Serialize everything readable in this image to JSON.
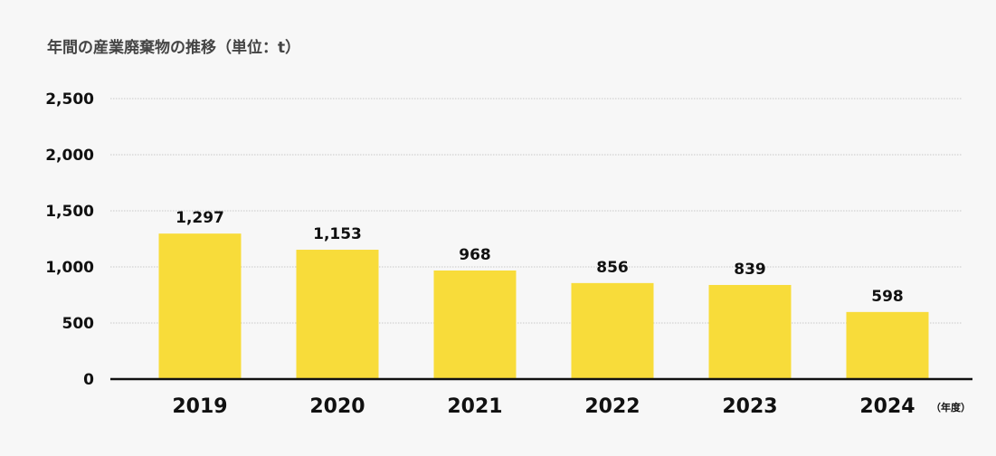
{
  "chart_data": {
    "type": "bar",
    "title": "年間の産業廃棄物の推移（単位：t）",
    "xlabel": "（年度）",
    "ylabel": "",
    "categories": [
      "2019",
      "2020",
      "2021",
      "2022",
      "2023",
      "2024"
    ],
    "values": [
      1297,
      1153,
      968,
      856,
      839,
      598
    ],
    "value_labels": [
      "1,297",
      "1,153",
      "968",
      "856",
      "839",
      "598"
    ],
    "ylim": [
      0,
      2500
    ],
    "yticks": [
      0,
      500,
      1000,
      1500,
      2000,
      2500
    ],
    "ytick_labels": [
      "0",
      "500",
      "1,000",
      "1,500",
      "2,000",
      "2,500"
    ],
    "grid": true,
    "bar_color": "#f8dc3a"
  }
}
